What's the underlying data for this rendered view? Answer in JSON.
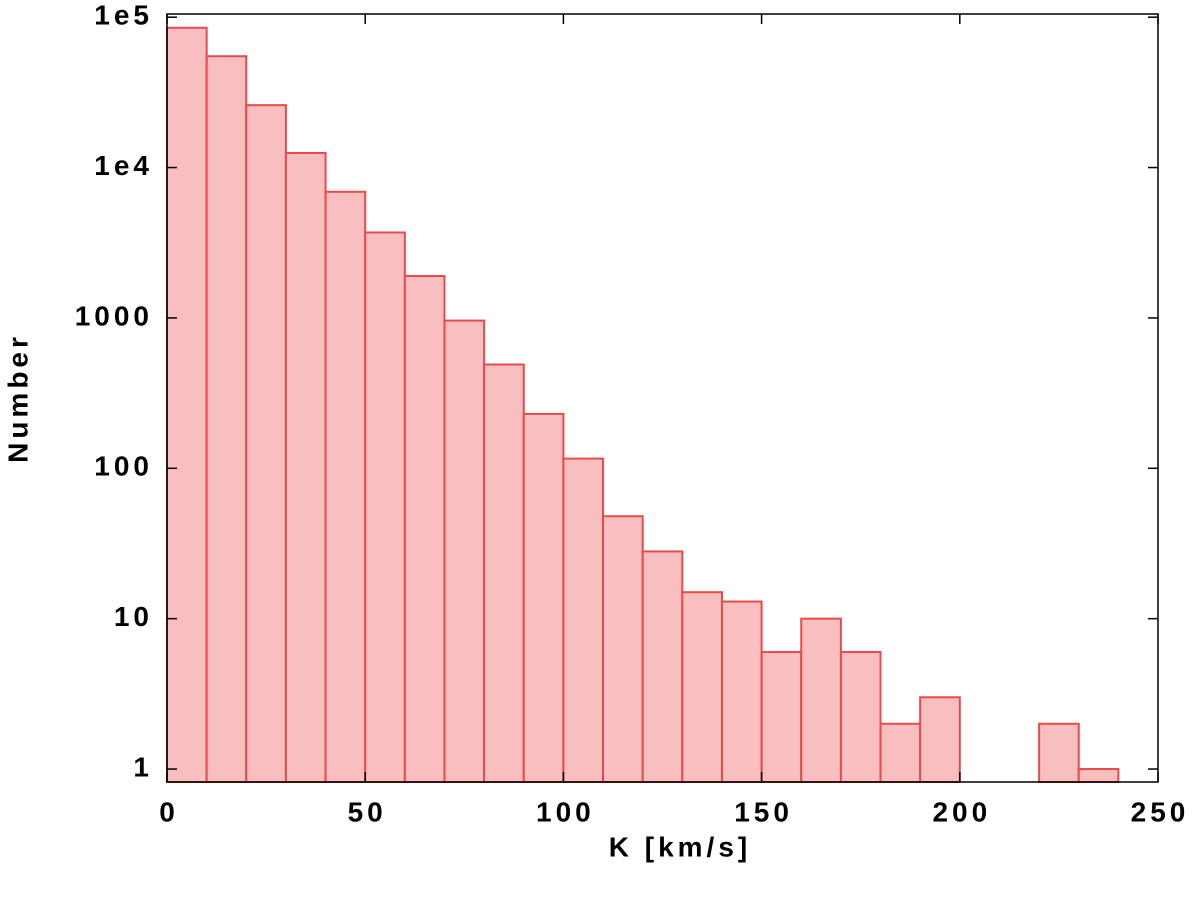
{
  "chart_data": {
    "type": "histogram",
    "xlabel": "K  [km/s]",
    "ylabel": "Number",
    "bins": [
      0,
      10,
      20,
      30,
      40,
      50,
      60,
      70,
      80,
      90,
      100,
      110,
      120,
      130,
      140,
      150,
      160,
      170,
      180,
      190,
      200,
      210,
      220,
      230,
      240
    ],
    "values": [
      85000,
      55000,
      26000,
      12500,
      6900,
      3700,
      1900,
      960,
      490,
      230,
      116,
      48,
      28,
      15,
      13,
      6,
      10,
      6,
      2,
      3,
      0,
      0,
      2,
      1
    ],
    "color": "#f9bfc0",
    "edgecolor": "#e84a4a",
    "xlim": [
      0,
      250
    ],
    "xticks": [
      0,
      50,
      100,
      150,
      200,
      250
    ],
    "ylim": [
      0.82,
      105000
    ],
    "ylog": true,
    "yticks": [
      1,
      10,
      100,
      1000,
      {
        "value": 10000,
        "label": "1e4"
      },
      {
        "value": 100000,
        "label": "1e5"
      }
    ]
  }
}
